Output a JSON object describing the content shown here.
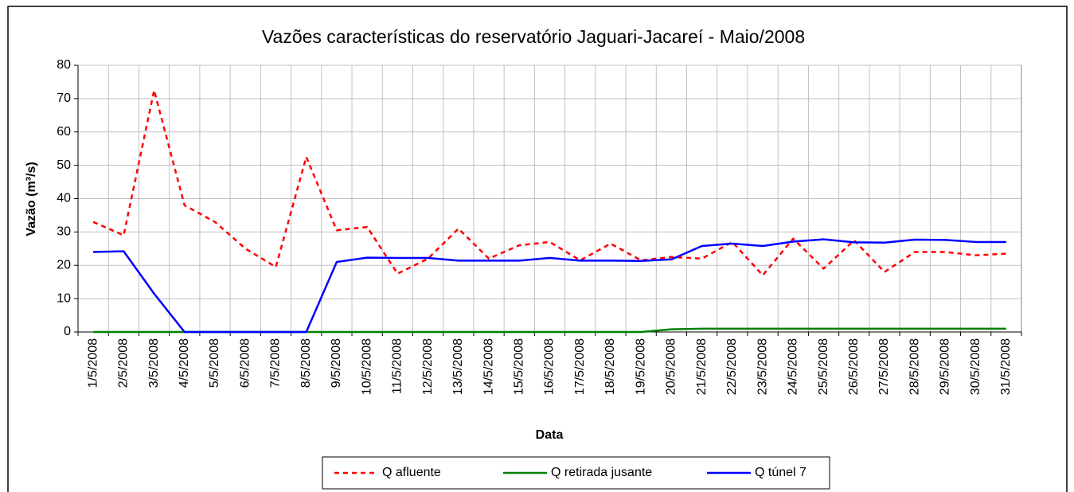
{
  "chart_data": {
    "type": "line",
    "title": "Vazões características do  reservatório Jaguari-Jacareí - Maio/2008",
    "xlabel": "Data",
    "ylabel": "Vazão (m³/s)",
    "categories": [
      "1/5/2008",
      "2/5/2008",
      "3/5/2008",
      "4/5/2008",
      "5/5/2008",
      "6/5/2008",
      "7/5/2008",
      "8/5/2008",
      "9/5/2008",
      "10/5/2008",
      "11/5/2008",
      "12/5/2008",
      "13/5/2008",
      "14/5/2008",
      "15/5/2008",
      "16/5/2008",
      "17/5/2008",
      "18/5/2008",
      "19/5/2008",
      "20/5/2008",
      "21/5/2008",
      "22/5/2008",
      "23/5/2008",
      "24/5/2008",
      "25/5/2008",
      "26/5/2008",
      "27/5/2008",
      "28/5/2008",
      "29/5/2008",
      "30/5/2008",
      "31/5/2008"
    ],
    "series": [
      {
        "name": "Q afluente",
        "color": "#ff0000",
        "dashed": true,
        "values": [
          33,
          29,
          72.5,
          38,
          33,
          25,
          19.5,
          52.5,
          30.5,
          31.5,
          17.5,
          22,
          31,
          22,
          26,
          27,
          21.5,
          26.5,
          21.5,
          22.5,
          22,
          27,
          17,
          28,
          19,
          27.5,
          18,
          24,
          24,
          23,
          23.5
        ]
      },
      {
        "name": "Q retirada jusante",
        "color": "#008000",
        "dashed": false,
        "values": [
          0,
          0,
          0,
          0,
          0,
          0,
          0,
          0,
          0,
          0,
          0,
          0,
          0,
          0,
          0,
          0,
          0,
          0,
          0,
          0.8,
          1,
          1,
          1,
          1,
          1,
          1,
          1,
          1,
          1,
          1,
          1
        ]
      },
      {
        "name": "Q túnel 7",
        "color": "#0000ff",
        "dashed": false,
        "values": [
          24,
          24.2,
          11.5,
          0,
          0,
          0,
          0,
          0,
          21,
          22.3,
          22.2,
          22.2,
          21.4,
          21.4,
          21.4,
          22.2,
          21.4,
          21.4,
          21.3,
          21.8,
          25.8,
          26.5,
          25.8,
          27.1,
          27.8,
          26.9,
          26.8,
          27.7,
          27.6,
          27,
          27
        ]
      }
    ],
    "ylim": [
      0,
      80
    ],
    "yticks": [
      0,
      10,
      20,
      30,
      40,
      50,
      60,
      70,
      80
    ],
    "grid": true
  }
}
